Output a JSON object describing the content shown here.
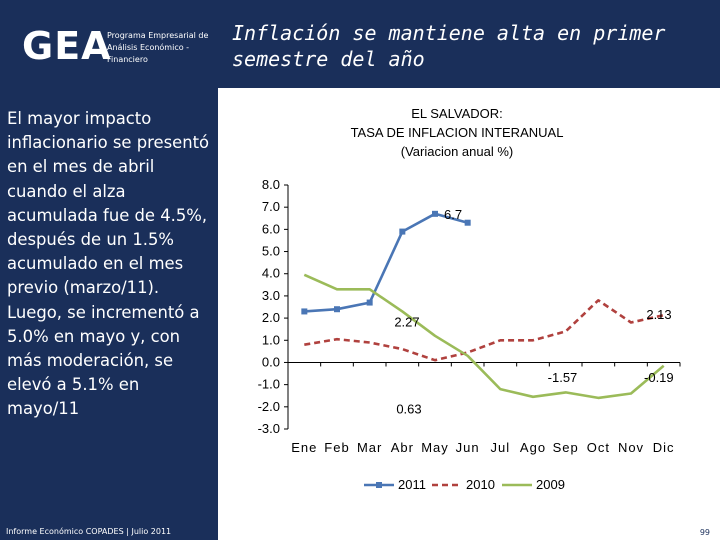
{
  "header": {
    "logo": "GEA",
    "logo_subtitle": "Programa Empresarial de Análisis Económico - Financiero",
    "title": "Inflación se mantiene alta en primer semestre del año"
  },
  "sidebar": {
    "body": "El mayor impacto inflacionario se presentó en el mes de abril cuando el alza acumulada fue de 4.5%, después de un 1.5% acumulado en el mes previo (marzo/11). Luego, se incrementó a 5.0% en mayo y, con más moderación, se elevó a 5.1% en mayo/11"
  },
  "footer": {
    "source": "Informe Económico COPADES  |  Julio 2011",
    "page": "99"
  },
  "colors": {
    "brand_navy": "#1a2f5a",
    "series_2011": "#4a76b5",
    "series_2010": "#b0413e",
    "series_2009": "#9bbb59"
  },
  "chart_data": {
    "type": "line",
    "title_lines": [
      "EL SALVADOR:",
      "TASA DE INFLACION INTERANUAL",
      "(Variacion anual %)"
    ],
    "categories": [
      "Ene",
      "Feb",
      "Mar",
      "Abr",
      "May",
      "Jun",
      "Jul",
      "Ago",
      "Sep",
      "Oct",
      "Nov",
      "Dic"
    ],
    "ylim": [
      -3.0,
      8.0
    ],
    "yticks": [
      "8.0",
      "7.0",
      "6.0",
      "5.0",
      "4.0",
      "3.0",
      "2.0",
      "1.0",
      "0.0",
      "-1.0",
      "-2.0",
      "-3.0"
    ],
    "series": [
      {
        "name": "2011",
        "values": [
          2.3,
          2.4,
          2.7,
          5.9,
          6.7,
          6.3,
          null,
          null,
          null,
          null,
          null,
          null
        ]
      },
      {
        "name": "2010",
        "values": [
          0.8,
          1.05,
          0.9,
          0.6,
          0.1,
          0.45,
          1.0,
          1.0,
          1.4,
          2.8,
          1.8,
          2.13
        ]
      },
      {
        "name": "2009",
        "values": [
          3.95,
          3.3,
          3.3,
          2.3,
          1.2,
          0.3,
          -1.2,
          -1.55,
          -1.35,
          -1.6,
          -1.4,
          -0.15
        ]
      }
    ],
    "data_labels": [
      "6.7",
      "2.27",
      "2.13",
      "0.63",
      "-1.57",
      "-0.19"
    ],
    "legend": [
      "2011",
      "2010",
      "2009"
    ],
    "legend_position": "bottom"
  }
}
